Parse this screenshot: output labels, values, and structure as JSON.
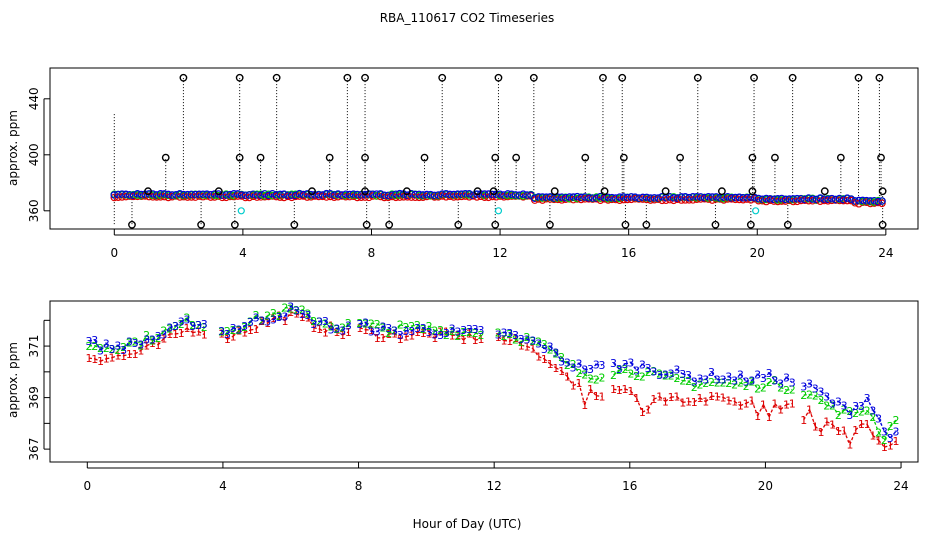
{
  "title": "RBA_110617  CO2 Timeseries",
  "xlabel": "Hour of Day (UTC)",
  "colors": {
    "frame": "#000000",
    "s1": "#dd0000",
    "s2": "#00cc00",
    "s3": "#0000dd",
    "cyan": "#00cccc",
    "marker": "#000000"
  },
  "chart_data": [
    {
      "type": "scatter",
      "name": "top-panel",
      "ylabel": "approx. ppm",
      "xlim": [
        -2,
        25
      ],
      "ylim": [
        347,
        462
      ],
      "xticks": [
        "0",
        "4",
        "8",
        "12",
        "16",
        "20",
        "24"
      ],
      "yticks": [
        "360",
        "400",
        "440"
      ],
      "baseline_ppm": 370.5,
      "spike_high": [
        2.15,
        3.9,
        5.05,
        7.25,
        7.8,
        10.2,
        11.95,
        13.05,
        15.2,
        15.8,
        18.15,
        19.9,
        21.1,
        23.15,
        23.8
      ],
      "spike_mid": [
        1.6,
        3.9,
        4.55,
        6.7,
        7.8,
        9.65,
        11.85,
        12.5,
        14.65,
        15.85,
        17.6,
        19.85,
        20.55,
        22.6,
        23.85
      ],
      "spike_low_350": [
        0.55,
        2.7,
        3.75,
        5.6,
        7.85,
        8.55,
        10.7,
        11.85,
        13.55,
        15.9,
        16.55,
        18.7,
        19.8,
        20.95,
        23.9
      ],
      "spike_374": [
        1.05,
        3.25,
        6.15,
        7.8,
        9.1,
        11.3,
        11.8,
        13.7,
        15.25,
        17.15,
        18.9,
        19.85,
        22.1,
        23.9
      ],
      "cyan_points": [
        3.95,
        11.95,
        19.95
      ],
      "cyan_ppm": 360
    },
    {
      "type": "line",
      "name": "bottom-panel",
      "ylabel": "approx. ppm",
      "xlim": [
        -1.1,
        24.5
      ],
      "ylim": [
        366.5,
        372.75
      ],
      "xticks": [
        "0",
        "4",
        "8",
        "12",
        "16",
        "20",
        "24"
      ],
      "yticks": [
        "367",
        "369",
        "371"
      ],
      "series": [
        {
          "name": "1",
          "label": "1",
          "color": "#dd0000"
        },
        {
          "name": "2",
          "label": "2",
          "color": "#00cc00"
        },
        {
          "name": "3",
          "label": "3",
          "color": "#0000dd"
        }
      ],
      "trend_x": [
        0,
        0.5,
        1,
        1.5,
        2,
        2.5,
        3,
        3.5,
        4,
        4.5,
        5,
        5.5,
        6,
        6.5,
        7,
        7.5,
        8,
        8.5,
        9,
        9.5,
        10,
        10.5,
        11,
        11.5,
        12,
        12.5,
        13,
        13.5,
        14,
        14.5,
        15,
        15.5,
        16,
        16.5,
        17,
        17.5,
        18,
        18.5,
        19,
        19.5,
        20,
        20.5,
        21,
        21.5,
        22,
        22.5,
        23,
        23.5,
        23.9
      ],
      "trend_3": [
        371.2,
        370.95,
        371.0,
        371.1,
        371.35,
        371.6,
        371.95,
        371.85,
        371.55,
        371.75,
        372.0,
        372.15,
        372.4,
        372.1,
        371.85,
        371.65,
        371.8,
        371.7,
        371.55,
        371.6,
        371.65,
        371.55,
        371.5,
        371.55,
        371.55,
        371.4,
        371.2,
        371.0,
        370.5,
        370.2,
        370.15,
        370.25,
        370.25,
        370.2,
        370.0,
        369.9,
        369.75,
        369.85,
        369.75,
        369.75,
        369.8,
        369.7,
        369.55,
        369.3,
        368.8,
        368.5,
        369.0,
        367.7,
        367.5
      ],
      "trend_2": [
        371.1,
        370.95,
        371.05,
        371.15,
        371.4,
        371.65,
        372.0,
        371.85,
        371.6,
        371.8,
        372.05,
        372.25,
        372.4,
        372.2,
        371.9,
        371.75,
        371.85,
        371.75,
        371.65,
        371.7,
        371.7,
        371.6,
        371.55,
        371.55,
        371.55,
        371.45,
        371.25,
        370.95,
        370.45,
        370.0,
        369.85,
        370.05,
        370.05,
        369.95,
        369.75,
        369.65,
        369.55,
        369.6,
        369.5,
        369.5,
        369.55,
        369.5,
        369.35,
        369.0,
        368.55,
        368.35,
        368.6,
        367.4,
        368.4
      ],
      "trend_1": [
        370.6,
        370.55,
        370.6,
        370.75,
        371.0,
        371.35,
        371.7,
        371.6,
        371.35,
        371.55,
        371.8,
        372.05,
        372.2,
        371.95,
        371.7,
        371.5,
        371.6,
        371.5,
        371.4,
        371.45,
        371.45,
        371.4,
        371.35,
        371.35,
        371.3,
        371.2,
        370.95,
        370.6,
        370.0,
        369.45,
        369.2,
        369.25,
        369.2,
        369.1,
        368.95,
        368.9,
        368.85,
        368.9,
        368.8,
        368.8,
        368.8,
        368.7,
        368.6,
        368.35,
        368.0,
        367.6,
        368.1,
        366.9,
        367.4
      ],
      "gap_hours": [
        [
          3.6,
          3.85
        ],
        [
          7.7,
          7.95
        ],
        [
          11.75,
          12.0
        ],
        [
          15.2,
          15.45
        ],
        [
          20.9,
          21.0
        ]
      ]
    }
  ]
}
